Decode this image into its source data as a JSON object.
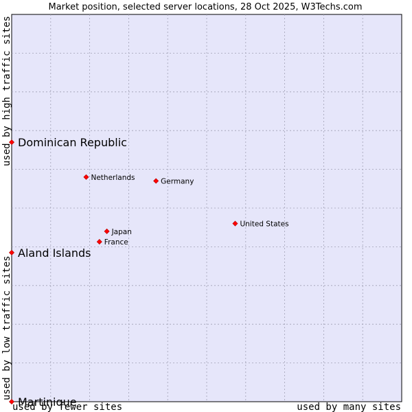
{
  "chart_data": {
    "type": "scatter",
    "title": "Market position, selected server locations, 28 Oct 2025, W3Techs.com",
    "xlabel_left": "used by fewer sites",
    "xlabel_right": "used by many sites",
    "ylabel_bottom": "used by low traffic sites",
    "ylabel_top": "used by high traffic sites",
    "xlim": [
      0,
      10
    ],
    "ylim": [
      0,
      10
    ],
    "grid": true,
    "colors": {
      "plot_background": "#e6e6fa",
      "grid": "#a0a0b4",
      "marker": "#ff0000",
      "marker_edge": "#b00000"
    },
    "points": [
      {
        "name": "Dominican Republic",
        "x": 0.0,
        "y": 6.7,
        "highlight": true
      },
      {
        "name": "Aland Islands",
        "x": 0.0,
        "y": 3.85,
        "highlight": true
      },
      {
        "name": "Martinique",
        "x": 0.0,
        "y": 0.0,
        "highlight": true
      },
      {
        "name": "Netherlands",
        "x": 1.91,
        "y": 5.8,
        "highlight": false
      },
      {
        "name": "Germany",
        "x": 3.7,
        "y": 5.7,
        "highlight": false
      },
      {
        "name": "United States",
        "x": 5.73,
        "y": 4.6,
        "highlight": false
      },
      {
        "name": "Japan",
        "x": 2.44,
        "y": 4.4,
        "highlight": false
      },
      {
        "name": "France",
        "x": 2.25,
        "y": 4.13,
        "highlight": false
      }
    ]
  }
}
